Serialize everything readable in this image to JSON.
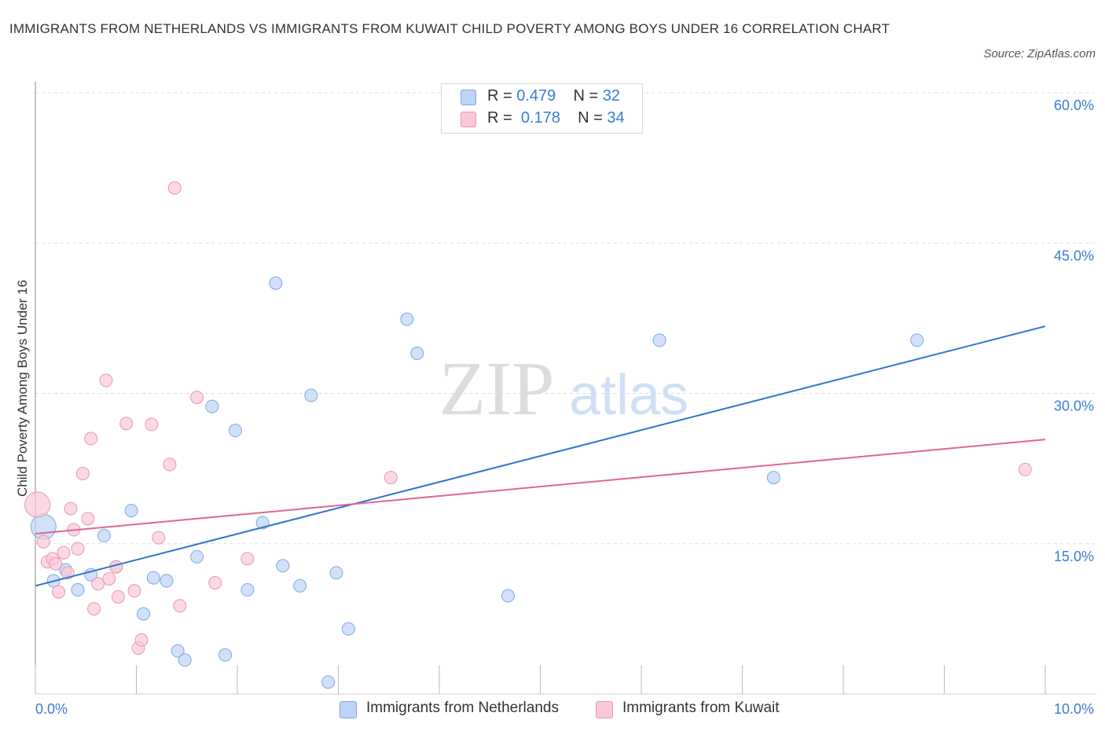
{
  "title": "IMMIGRANTS FROM NETHERLANDS VS IMMIGRANTS FROM KUWAIT CHILD POVERTY AMONG BOYS UNDER 16 CORRELATION CHART",
  "source": "Source: ZipAtlas.com",
  "watermark": {
    "zip": "ZIP",
    "atlas": "atlas"
  },
  "legend_top": {
    "rows": [
      {
        "r_label": "R =",
        "r_value": "0.479",
        "n_label": "N =",
        "n_value": "32"
      },
      {
        "r_label": "R =",
        "r_value": "0.178",
        "n_label": "N =",
        "n_value": "34"
      }
    ]
  },
  "legend_bottom": {
    "items": [
      {
        "label": "Immigrants from Netherlands"
      },
      {
        "label": "Immigrants from Kuwait"
      }
    ]
  },
  "colors": {
    "netherlands_fill": "#bcd4f6",
    "netherlands_stroke": "#7ea8e3",
    "netherlands_line": "#2f74cf",
    "kuwait_fill": "#f9c9d8",
    "kuwait_stroke": "#eb95b0",
    "kuwait_line": "#e0678f",
    "tick_label": "#3a7bd5",
    "grid": "#dddddd"
  },
  "chart_data": {
    "type": "scatter",
    "ylabel": "Child Poverty Among Boys Under 16",
    "xlabel": "",
    "xlim": [
      0,
      10
    ],
    "ylim": [
      0,
      60
    ],
    "x_tick_labels": [
      {
        "value": 0,
        "label": "0.0%"
      },
      {
        "value": 10,
        "label": "10.0%"
      }
    ],
    "y_tick_labels": [
      {
        "value": 15,
        "label": "15.0%"
      },
      {
        "value": 30,
        "label": "30.0%"
      },
      {
        "value": 45,
        "label": "45.0%"
      },
      {
        "value": 60,
        "label": "60.0%"
      }
    ],
    "grid": true,
    "series": [
      {
        "name": "Immigrants from Netherlands",
        "color": "#bcd4f6",
        "trend": {
          "x": [
            0,
            10
          ],
          "y": [
            10.8,
            36.7
          ]
        },
        "points": [
          {
            "x": 0.08,
            "y": 16.7,
            "big": true
          },
          {
            "x": 0.18,
            "y": 11.3
          },
          {
            "x": 0.3,
            "y": 12.4
          },
          {
            "x": 0.42,
            "y": 10.4
          },
          {
            "x": 0.55,
            "y": 11.9
          },
          {
            "x": 0.68,
            "y": 15.8
          },
          {
            "x": 0.8,
            "y": 12.7
          },
          {
            "x": 0.95,
            "y": 18.3
          },
          {
            "x": 1.07,
            "y": 8.0
          },
          {
            "x": 1.17,
            "y": 11.6
          },
          {
            "x": 1.3,
            "y": 11.3
          },
          {
            "x": 1.41,
            "y": 4.3
          },
          {
            "x": 1.48,
            "y": 3.4
          },
          {
            "x": 1.6,
            "y": 13.7
          },
          {
            "x": 1.75,
            "y": 28.7
          },
          {
            "x": 1.88,
            "y": 3.9
          },
          {
            "x": 1.98,
            "y": 26.3
          },
          {
            "x": 2.1,
            "y": 10.4
          },
          {
            "x": 2.25,
            "y": 17.1
          },
          {
            "x": 2.38,
            "y": 41.0
          },
          {
            "x": 2.45,
            "y": 12.8
          },
          {
            "x": 2.62,
            "y": 10.8
          },
          {
            "x": 2.73,
            "y": 29.8
          },
          {
            "x": 2.9,
            "y": 1.2
          },
          {
            "x": 2.98,
            "y": 12.1
          },
          {
            "x": 3.1,
            "y": 6.5
          },
          {
            "x": 3.68,
            "y": 37.4
          },
          {
            "x": 3.78,
            "y": 34.0
          },
          {
            "x": 4.68,
            "y": 9.8
          },
          {
            "x": 6.18,
            "y": 35.3
          },
          {
            "x": 7.31,
            "y": 21.6
          },
          {
            "x": 8.73,
            "y": 35.3
          }
        ]
      },
      {
        "name": "Immigrants from Kuwait",
        "color": "#f9c9d8",
        "trend": {
          "x": [
            0,
            10
          ],
          "y": [
            16.0,
            25.4
          ]
        },
        "points": [
          {
            "x": 0.02,
            "y": 18.9,
            "big": true
          },
          {
            "x": 0.08,
            "y": 15.2
          },
          {
            "x": 0.12,
            "y": 13.2
          },
          {
            "x": 0.17,
            "y": 13.5
          },
          {
            "x": 0.2,
            "y": 13.0
          },
          {
            "x": 0.23,
            "y": 10.2
          },
          {
            "x": 0.28,
            "y": 14.1
          },
          {
            "x": 0.32,
            "y": 12.1
          },
          {
            "x": 0.35,
            "y": 18.5
          },
          {
            "x": 0.38,
            "y": 16.4
          },
          {
            "x": 0.42,
            "y": 14.5
          },
          {
            "x": 0.47,
            "y": 22.0
          },
          {
            "x": 0.52,
            "y": 17.5
          },
          {
            "x": 0.55,
            "y": 25.5
          },
          {
            "x": 0.58,
            "y": 8.5
          },
          {
            "x": 0.62,
            "y": 11.0
          },
          {
            "x": 0.7,
            "y": 31.3
          },
          {
            "x": 0.73,
            "y": 11.5
          },
          {
            "x": 0.8,
            "y": 12.7
          },
          {
            "x": 0.82,
            "y": 9.7
          },
          {
            "x": 0.9,
            "y": 27.0
          },
          {
            "x": 0.98,
            "y": 10.3
          },
          {
            "x": 1.02,
            "y": 4.6
          },
          {
            "x": 1.05,
            "y": 5.4
          },
          {
            "x": 1.15,
            "y": 26.9
          },
          {
            "x": 1.22,
            "y": 15.6
          },
          {
            "x": 1.33,
            "y": 22.9
          },
          {
            "x": 1.38,
            "y": 50.5
          },
          {
            "x": 1.43,
            "y": 8.8
          },
          {
            "x": 1.6,
            "y": 29.6
          },
          {
            "x": 1.78,
            "y": 11.1
          },
          {
            "x": 2.1,
            "y": 13.5
          },
          {
            "x": 3.52,
            "y": 21.6
          },
          {
            "x": 9.8,
            "y": 22.4
          }
        ]
      }
    ]
  }
}
